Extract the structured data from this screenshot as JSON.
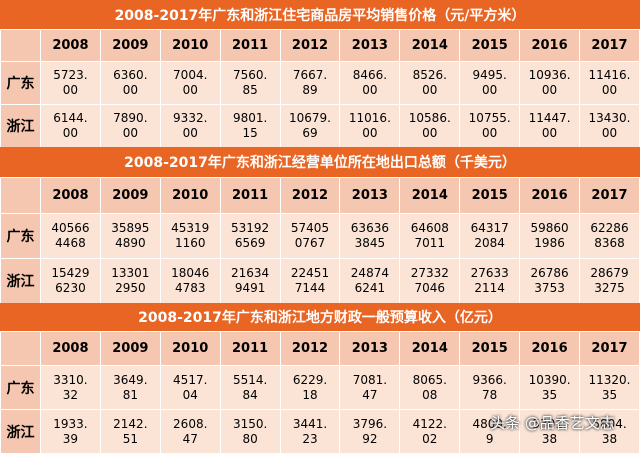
{
  "years": [
    "2008",
    "2009",
    "2010",
    "2011",
    "2012",
    "2013",
    "2014",
    "2015",
    "2016",
    "2017"
  ],
  "sections": [
    {
      "title": "2008-2017年广东和浙江住宅商品房平均销售价格（元/平方米）",
      "rows": [
        {
          "label": "广东",
          "cells": [
            [
              "5723.",
              "00"
            ],
            [
              "6360.",
              "00"
            ],
            [
              "7004.",
              "00"
            ],
            [
              "7560.",
              "85"
            ],
            [
              "7667.",
              "89"
            ],
            [
              "8466.",
              "00"
            ],
            [
              "8526.",
              "00"
            ],
            [
              "9495.",
              "00"
            ],
            [
              "10936.",
              "00"
            ],
            [
              "11416.",
              "00"
            ]
          ]
        },
        {
          "label": "浙江",
          "cells": [
            [
              "6144.",
              "00"
            ],
            [
              "7890.",
              "00"
            ],
            [
              "9332.",
              "00"
            ],
            [
              "9801.",
              "15"
            ],
            [
              "10679.",
              "69"
            ],
            [
              "11016.",
              "00"
            ],
            [
              "10586.",
              "00"
            ],
            [
              "10755.",
              "00"
            ],
            [
              "11447.",
              "00"
            ],
            [
              "13430.",
              "00"
            ]
          ]
        }
      ]
    },
    {
      "title": "2008-2017年广东和浙江经营单位所在地出口总额（千美元）",
      "rows": [
        {
          "label": "广东",
          "cells": [
            [
              "40566",
              "4468"
            ],
            [
              "35895",
              "4890"
            ],
            [
              "45319",
              "1160"
            ],
            [
              "53192",
              "6569"
            ],
            [
              "57405",
              "0767"
            ],
            [
              "63636",
              "3845"
            ],
            [
              "64608",
              "7011"
            ],
            [
              "64317",
              "2084"
            ],
            [
              "59860",
              "1986"
            ],
            [
              "62286",
              "8368"
            ]
          ]
        },
        {
          "label": "浙江",
          "cells": [
            [
              "15429",
              "6230"
            ],
            [
              "13301",
              "2950"
            ],
            [
              "18046",
              "4783"
            ],
            [
              "21634",
              "9491"
            ],
            [
              "22451",
              "7144"
            ],
            [
              "24874",
              "6241"
            ],
            [
              "27332",
              "7046"
            ],
            [
              "27633",
              "2114"
            ],
            [
              "26786",
              "3753"
            ],
            [
              "28679",
              "3275"
            ]
          ]
        }
      ]
    },
    {
      "title": "2008-2017年广东和浙江地方财政一般预算收入（亿元）",
      "rows": [
        {
          "label": "广东",
          "cells": [
            [
              "3310.",
              "32"
            ],
            [
              "3649.",
              "81"
            ],
            [
              "4517.",
              "04"
            ],
            [
              "5514.",
              "84"
            ],
            [
              "6229.",
              "18"
            ],
            [
              "7081.",
              "47"
            ],
            [
              "8065.",
              "08"
            ],
            [
              "9366.",
              "78"
            ],
            [
              "10390.",
              "35"
            ],
            [
              "11320.",
              "35"
            ]
          ]
        },
        {
          "label": "浙江",
          "cells": [
            [
              "1933.",
              "39"
            ],
            [
              "2142.",
              "51"
            ],
            [
              "2608.",
              "47"
            ],
            [
              "3150.",
              "80"
            ],
            [
              "3441.",
              "23"
            ],
            [
              "3796.",
              "92"
            ],
            [
              "4122.",
              "02"
            ],
            [
              "4809.",
              "9"
            ],
            [
              "5301.",
              "38"
            ],
            [
              "5804.",
              "38"
            ]
          ]
        }
      ]
    }
  ],
  "watermark": "头条 @品香艺文志"
}
